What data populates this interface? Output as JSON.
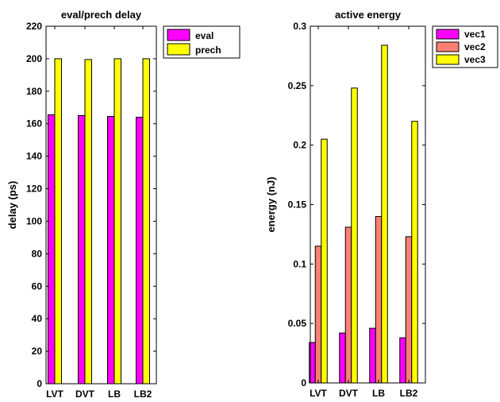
{
  "chart_data": [
    {
      "type": "bar",
      "title": "eval/prech delay",
      "xlabel": "",
      "ylabel": "delay (ps)",
      "categories": [
        "LVT",
        "DVT",
        "LB",
        "LB2"
      ],
      "ylim": [
        0,
        220
      ],
      "yticks": [
        "0",
        "20",
        "40",
        "60",
        "80",
        "100",
        "120",
        "140",
        "160",
        "180",
        "200",
        "220"
      ],
      "series": [
        {
          "name": "eval",
          "color": "#ff00ff",
          "values": [
            165.5,
            165,
            164.5,
            164
          ]
        },
        {
          "name": "prech",
          "color": "#ffff00",
          "values": [
            200,
            199.5,
            200,
            200
          ]
        }
      ],
      "legend": "top-right",
      "grid": false
    },
    {
      "type": "bar",
      "title": "active energy",
      "xlabel": "",
      "ylabel": "energy (nJ)",
      "categories": [
        "LVT",
        "DVT",
        "LB",
        "LB2"
      ],
      "ylim": [
        0,
        0.3
      ],
      "yticks": [
        "0",
        "0.05",
        "0.1",
        "0.15",
        "0.2",
        "0.25",
        "0.3"
      ],
      "series": [
        {
          "name": "vec1",
          "color": "#ff00ff",
          "values": [
            0.034,
            0.042,
            0.046,
            0.038
          ]
        },
        {
          "name": "vec2",
          "color": "#fa8072",
          "values": [
            0.115,
            0.131,
            0.14,
            0.123
          ]
        },
        {
          "name": "vec3",
          "color": "#ffff00",
          "values": [
            0.205,
            0.248,
            0.284,
            0.22
          ]
        }
      ],
      "legend": "top-right",
      "grid": false
    }
  ]
}
